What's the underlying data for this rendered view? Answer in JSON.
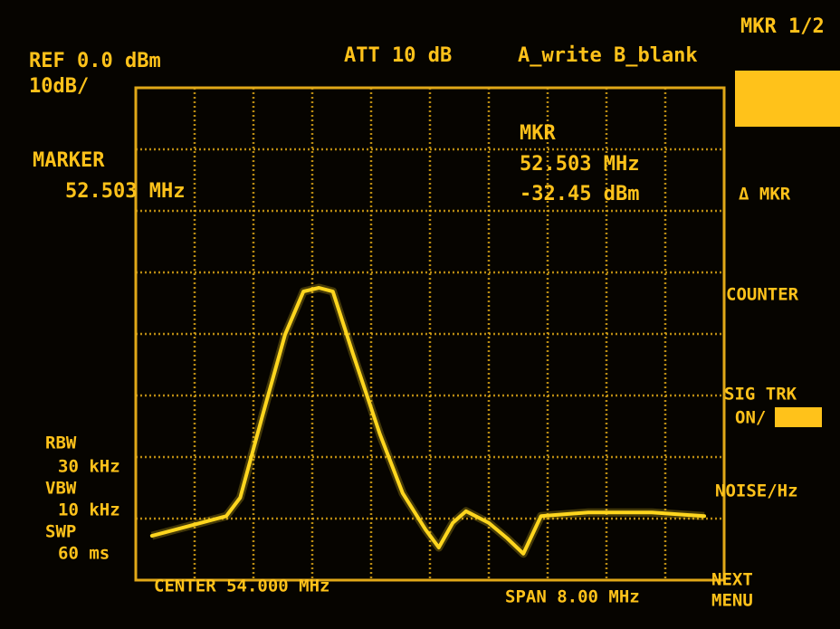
{
  "header": {
    "ref_level": "REF 0.0 dBm",
    "scale": "10dB/",
    "attenuation": "ATT 10 dB",
    "trace_mode": "A_write B_blank"
  },
  "marker_panel": {
    "label": "MARKER",
    "frequency": "52.503 MHz"
  },
  "marker_readout": {
    "label": "MKR",
    "frequency": "52.503 MHz",
    "level": "-32.45 dBm"
  },
  "settings": {
    "rbw_label": "RBW",
    "rbw": "30 kHz",
    "vbw_label": "VBW",
    "vbw": "10 kHz",
    "swp_label": "SWP",
    "swp": "60 ms"
  },
  "footer": {
    "center": "CENTER 54.000 MHz",
    "span": "SPAN 8.00 MHz"
  },
  "softkeys": [
    "MKR 1/2",
    "Δ MKR",
    "COUNTER",
    "SIG TRK",
    "ON/",
    "NOISE/Hz",
    "NEXT",
    "MENU"
  ],
  "chart_data": {
    "type": "line",
    "x": [
      50.22,
      51.23,
      51.42,
      51.72,
      52.03,
      52.28,
      52.49,
      52.68,
      52.95,
      53.32,
      53.63,
      53.94,
      54.12,
      54.31,
      54.49,
      54.8,
      55.05,
      55.27,
      55.51,
      56.15,
      57.02,
      57.73
    ],
    "series": [
      {
        "color": "#ffd61e",
        "values": [
          -72.8,
          -69.6,
          -66.6,
          -53.4,
          -40.1,
          -33.1,
          -32.5,
          -33.1,
          -43.1,
          -56.3,
          -65.9,
          -71.8,
          -74.7,
          -70.7,
          -68.8,
          -70.7,
          -73.2,
          -75.7,
          -69.6,
          -69.0,
          -69.0,
          -69.6
        ]
      }
    ],
    "xlim": [
      50,
      58
    ],
    "ylim": [
      -80,
      0
    ],
    "xticks": [
      50,
      50.8,
      51.6,
      52.4,
      53.2,
      54,
      54.8,
      55.6,
      56.4,
      57.2,
      58
    ],
    "yticks": [
      -80,
      -70,
      -60,
      -50,
      -40,
      -30,
      -20,
      -10,
      0
    ],
    "grid": true
  }
}
